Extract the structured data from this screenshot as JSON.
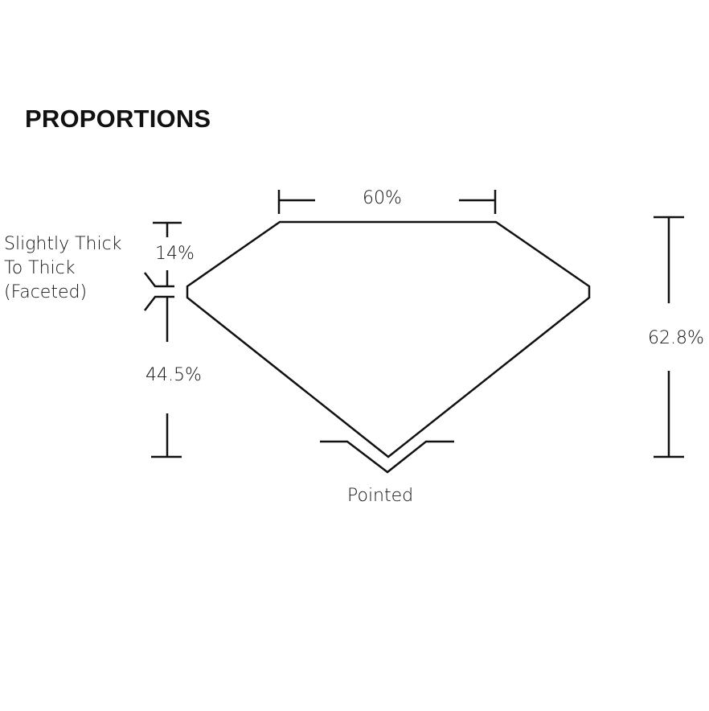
{
  "title": "PROPORTIONS",
  "labels": {
    "table": "60%",
    "crown": "14%",
    "pavilion": "44.5%",
    "depth": "62.8%",
    "girdle": [
      "Slightly Thick",
      "To Thick",
      "(Faceted)"
    ],
    "culet": "Pointed"
  },
  "colors": {
    "line": "#111111",
    "background": "#ffffff"
  }
}
